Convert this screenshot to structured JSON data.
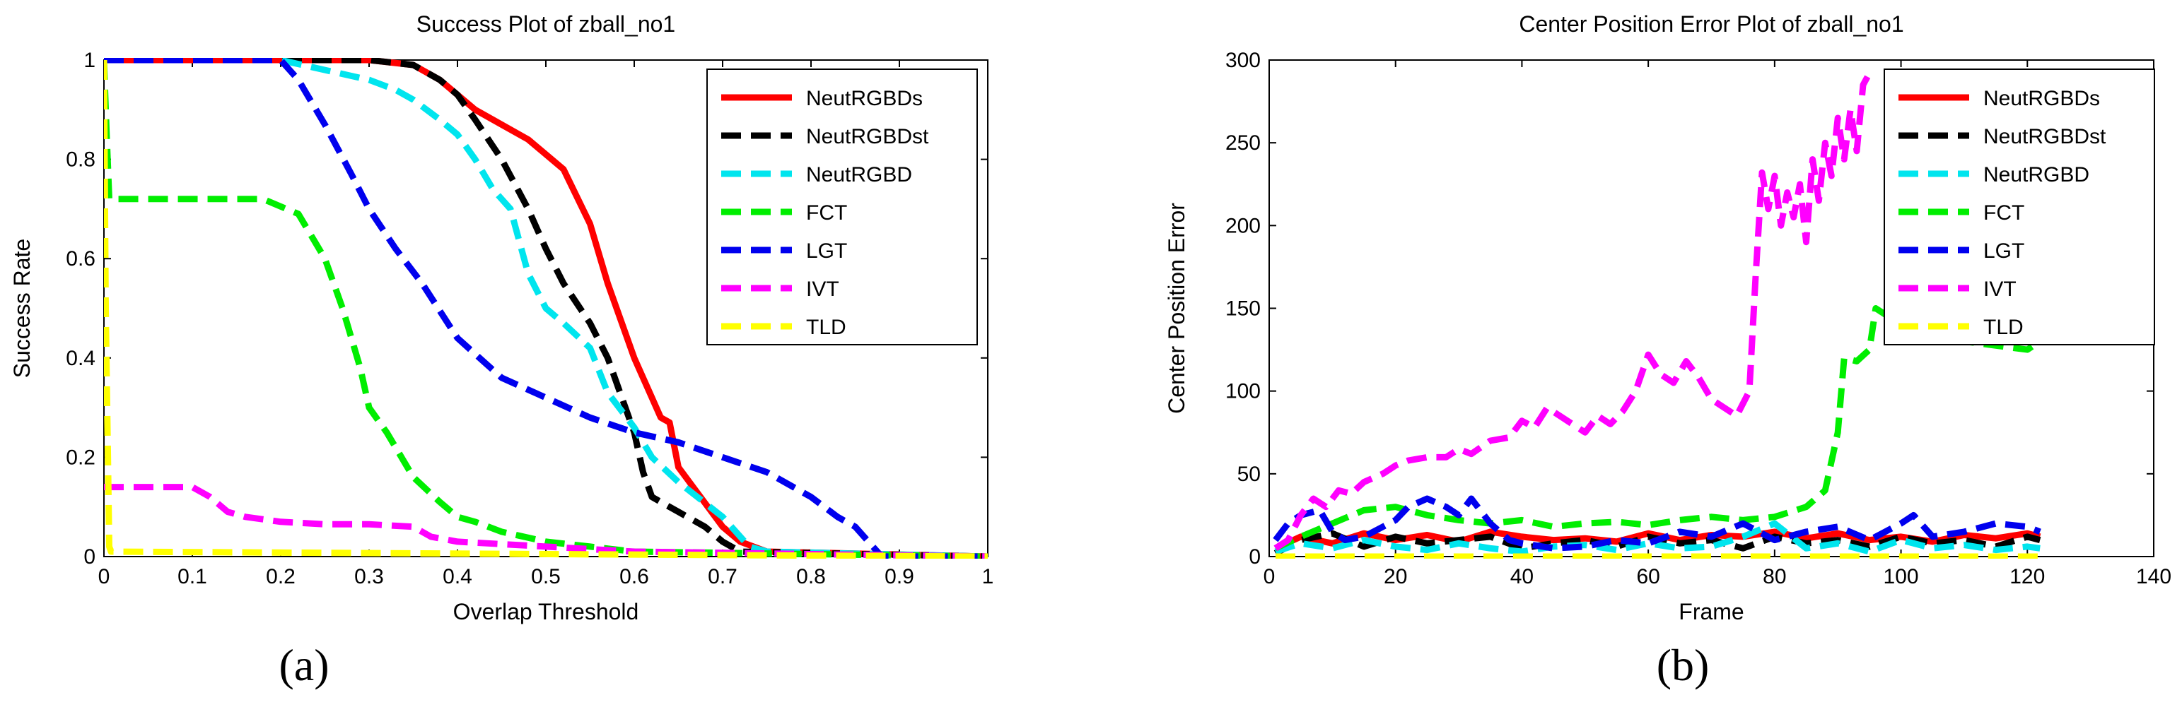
{
  "chart_data": [
    {
      "type": "line",
      "title": "Success Plot of zball_no1",
      "xlabel": "Overlap Threshold",
      "ylabel": "Success Rate",
      "xlim": [
        0,
        1
      ],
      "ylim": [
        0,
        1
      ],
      "xticks": [
        "0",
        "0.1",
        "0.2",
        "0.3",
        "0.4",
        "0.5",
        "0.6",
        "0.7",
        "0.8",
        "0.9",
        "1"
      ],
      "yticks": [
        "0",
        "0.2",
        "0.4",
        "0.6",
        "0.8",
        "1"
      ],
      "legend_position": "top-right",
      "series": [
        {
          "name": "NeutRGBDs",
          "color": "#ff0000",
          "dash": "solid",
          "x": [
            0,
            0.3,
            0.35,
            0.38,
            0.4,
            0.42,
            0.45,
            0.48,
            0.5,
            0.52,
            0.55,
            0.57,
            0.6,
            0.62,
            0.63,
            0.64,
            0.65,
            0.7,
            0.72,
            0.75,
            1
          ],
          "y": [
            1,
            1,
            0.99,
            0.96,
            0.93,
            0.9,
            0.87,
            0.84,
            0.81,
            0.78,
            0.67,
            0.55,
            0.4,
            0.32,
            0.28,
            0.27,
            0.18,
            0.06,
            0.03,
            0.01,
            0
          ]
        },
        {
          "name": "NeutRGBDst",
          "color": "#000000",
          "dash": "dash",
          "x": [
            0,
            0.3,
            0.35,
            0.38,
            0.4,
            0.42,
            0.45,
            0.48,
            0.5,
            0.52,
            0.55,
            0.57,
            0.6,
            0.61,
            0.62,
            0.65,
            0.68,
            0.7,
            0.72,
            1
          ],
          "y": [
            1,
            1,
            0.99,
            0.96,
            0.93,
            0.88,
            0.8,
            0.7,
            0.62,
            0.55,
            0.47,
            0.4,
            0.25,
            0.17,
            0.12,
            0.09,
            0.06,
            0.03,
            0.01,
            0
          ]
        },
        {
          "name": "NeutRGBD",
          "color": "#00e5ee",
          "dash": "dash",
          "x": [
            0,
            0.2,
            0.25,
            0.3,
            0.33,
            0.35,
            0.38,
            0.4,
            0.42,
            0.44,
            0.46,
            0.48,
            0.5,
            0.52,
            0.55,
            0.57,
            0.6,
            0.62,
            0.65,
            0.7,
            0.73,
            0.75,
            1
          ],
          "y": [
            1,
            1,
            0.98,
            0.96,
            0.94,
            0.92,
            0.88,
            0.85,
            0.8,
            0.74,
            0.7,
            0.57,
            0.5,
            0.47,
            0.42,
            0.33,
            0.26,
            0.2,
            0.15,
            0.08,
            0.02,
            0.01,
            0
          ]
        },
        {
          "name": "FCT",
          "color": "#00ee00",
          "dash": "dash",
          "x": [
            0,
            0.003,
            0.006,
            0.01,
            0.18,
            0.22,
            0.25,
            0.27,
            0.29,
            0.3,
            0.32,
            0.35,
            0.38,
            0.4,
            0.42,
            0.45,
            0.5,
            0.55,
            0.6,
            1
          ],
          "y": [
            1,
            0.85,
            0.72,
            0.72,
            0.72,
            0.69,
            0.6,
            0.5,
            0.38,
            0.3,
            0.25,
            0.16,
            0.11,
            0.08,
            0.07,
            0.05,
            0.03,
            0.02,
            0.01,
            0
          ]
        },
        {
          "name": "LGT",
          "color": "#0000ee",
          "dash": "dash",
          "x": [
            0,
            0.2,
            0.22,
            0.25,
            0.28,
            0.3,
            0.33,
            0.36,
            0.4,
            0.45,
            0.5,
            0.55,
            0.6,
            0.65,
            0.7,
            0.75,
            0.8,
            0.83,
            0.85,
            0.87,
            0.88,
            1
          ],
          "y": [
            1,
            1,
            0.96,
            0.87,
            0.77,
            0.7,
            0.62,
            0.55,
            0.44,
            0.36,
            0.32,
            0.28,
            0.25,
            0.23,
            0.2,
            0.17,
            0.12,
            0.08,
            0.06,
            0.02,
            0,
            0
          ]
        },
        {
          "name": "IVT",
          "color": "#ff00ff",
          "dash": "dash",
          "x": [
            0,
            0.003,
            0.005,
            0.1,
            0.12,
            0.14,
            0.16,
            0.2,
            0.25,
            0.3,
            0.35,
            0.37,
            0.4,
            0.5,
            0.6,
            1
          ],
          "y": [
            0.14,
            0.14,
            0.14,
            0.14,
            0.12,
            0.09,
            0.08,
            0.07,
            0.065,
            0.065,
            0.06,
            0.04,
            0.03,
            0.02,
            0.01,
            0
          ]
        },
        {
          "name": "TLD",
          "color": "#ffff00",
          "dash": "dash",
          "x": [
            0,
            0.002,
            0.006,
            0.008,
            1
          ],
          "y": [
            1,
            0.5,
            0.02,
            0.01,
            0
          ]
        }
      ]
    },
    {
      "type": "line",
      "title": "Center Position Error Plot of zball_no1",
      "xlabel": "Frame",
      "ylabel": "Center Position Error",
      "xlim": [
        0,
        140
      ],
      "ylim": [
        0,
        300
      ],
      "xticks": [
        "0",
        "20",
        "40",
        "60",
        "80",
        "100",
        "120",
        "140"
      ],
      "yticks": [
        "0",
        "50",
        "100",
        "150",
        "200",
        "250",
        "300"
      ],
      "legend_position": "top-right",
      "series": [
        {
          "name": "NeutRGBDs",
          "color": "#ff0000",
          "dash": "solid",
          "x": [
            1,
            5,
            10,
            15,
            20,
            25,
            30,
            35,
            40,
            45,
            50,
            55,
            60,
            65,
            70,
            75,
            80,
            85,
            90,
            95,
            100,
            105,
            110,
            115,
            120,
            122
          ],
          "y": [
            5,
            12,
            8,
            14,
            10,
            13,
            9,
            15,
            12,
            10,
            11,
            9,
            14,
            10,
            13,
            12,
            15,
            11,
            14,
            10,
            12,
            9,
            13,
            11,
            14,
            12
          ]
        },
        {
          "name": "NeutRGBDst",
          "color": "#000000",
          "dash": "dash",
          "x": [
            1,
            5,
            10,
            15,
            20,
            25,
            30,
            35,
            40,
            45,
            50,
            55,
            60,
            65,
            70,
            75,
            80,
            85,
            90,
            95,
            100,
            105,
            110,
            115,
            120,
            122
          ],
          "y": [
            2,
            10,
            14,
            6,
            12,
            8,
            10,
            12,
            5,
            8,
            10,
            6,
            12,
            8,
            10,
            5,
            12,
            8,
            10,
            6,
            12,
            8,
            10,
            6,
            12,
            10
          ]
        },
        {
          "name": "NeutRGBD",
          "color": "#00e5ee",
          "dash": "dash",
          "x": [
            1,
            5,
            10,
            15,
            20,
            25,
            30,
            35,
            40,
            45,
            50,
            55,
            60,
            65,
            70,
            75,
            80,
            85,
            90,
            95,
            100,
            105,
            110,
            115,
            120,
            122
          ],
          "y": [
            3,
            8,
            5,
            10,
            6,
            4,
            8,
            5,
            3,
            6,
            7,
            4,
            8,
            5,
            6,
            12,
            20,
            5,
            8,
            3,
            10,
            5,
            7,
            4,
            6,
            5
          ]
        },
        {
          "name": "FCT",
          "color": "#00ee00",
          "dash": "dash",
          "x": [
            1,
            5,
            10,
            15,
            20,
            25,
            30,
            35,
            40,
            45,
            50,
            55,
            60,
            65,
            70,
            75,
            80,
            85,
            88,
            90,
            91,
            93,
            95,
            96,
            98,
            100,
            105,
            110,
            120,
            122
          ],
          "y": [
            5,
            12,
            20,
            28,
            30,
            25,
            22,
            20,
            22,
            18,
            20,
            21,
            19,
            22,
            24,
            22,
            24,
            30,
            40,
            75,
            120,
            118,
            125,
            150,
            145,
            140,
            135,
            130,
            125,
            130
          ]
        },
        {
          "name": "LGT",
          "color": "#0000ee",
          "dash": "dash",
          "x": [
            1,
            3,
            5,
            8,
            10,
            12,
            15,
            18,
            20,
            22,
            25,
            28,
            30,
            32,
            35,
            38,
            40,
            45,
            50,
            55,
            60,
            65,
            70,
            75,
            80,
            85,
            90,
            95,
            100,
            102,
            105,
            110,
            115,
            120,
            122
          ],
          "y": [
            10,
            20,
            25,
            28,
            15,
            10,
            12,
            18,
            22,
            30,
            35,
            30,
            25,
            35,
            20,
            10,
            8,
            5,
            6,
            10,
            8,
            15,
            12,
            20,
            10,
            15,
            18,
            10,
            20,
            25,
            12,
            15,
            20,
            18,
            15
          ]
        },
        {
          "name": "IVT",
          "color": "#ff00ff",
          "dash": "dash",
          "x": [
            1,
            3,
            5,
            7,
            9,
            11,
            13,
            15,
            18,
            20,
            22,
            25,
            28,
            30,
            32,
            35,
            38,
            40,
            42,
            44,
            46,
            48,
            50,
            52,
            54,
            56,
            58,
            60,
            62,
            64,
            66,
            68,
            70,
            72,
            74,
            76,
            77,
            78,
            79,
            80,
            81,
            82,
            83,
            84,
            85,
            86,
            87,
            88,
            89,
            90,
            91,
            92,
            93,
            94,
            95
          ],
          "y": [
            5,
            10,
            25,
            35,
            30,
            40,
            38,
            45,
            50,
            55,
            58,
            60,
            60,
            65,
            62,
            70,
            72,
            82,
            78,
            90,
            85,
            80,
            75,
            85,
            80,
            88,
            100,
            122,
            110,
            105,
            118,
            108,
            95,
            90,
            85,
            100,
            170,
            232,
            210,
            230,
            200,
            220,
            205,
            225,
            190,
            240,
            215,
            250,
            230,
            265,
            240,
            270,
            245,
            285,
            292
          ]
        },
        {
          "name": "TLD",
          "color": "#ffff00",
          "dash": "dash",
          "x": [
            1,
            122
          ],
          "y": [
            0,
            0
          ]
        }
      ]
    }
  ],
  "captions": {
    "a": "(a)",
    "b": "(b)"
  }
}
